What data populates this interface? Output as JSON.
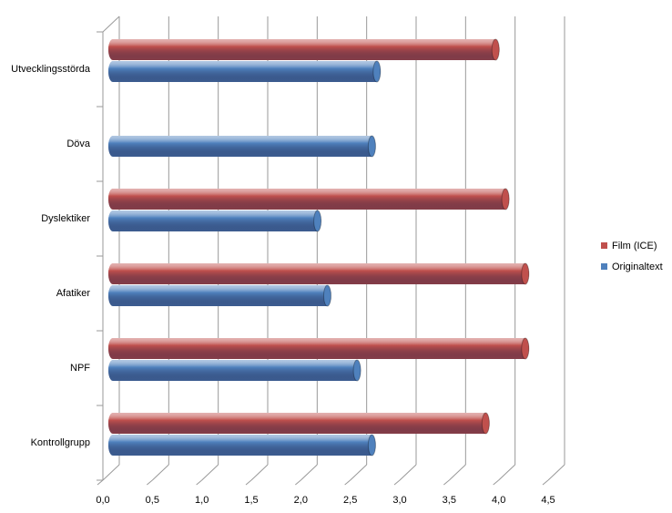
{
  "chart_data": {
    "type": "bar",
    "orientation": "horizontal",
    "categories": [
      "Utvecklingsstörda",
      "Döva",
      "Dyslektiker",
      "Afatiker",
      "NPF",
      "Kontrollgrupp"
    ],
    "series": [
      {
        "name": "Film (ICE)",
        "color": "#c0504d",
        "values": [
          3.95,
          null,
          4.05,
          4.25,
          4.25,
          3.85
        ]
      },
      {
        "name": "Originaltext",
        "color": "#4f81bd",
        "values": [
          2.75,
          2.7,
          2.15,
          2.25,
          2.55,
          2.7
        ]
      }
    ],
    "xlim": [
      0,
      4.5
    ],
    "xticks": [
      {
        "value": 0,
        "label": "0,0"
      },
      {
        "value": 0.5,
        "label": "0,5"
      },
      {
        "value": 1,
        "label": "1,0"
      },
      {
        "value": 1.5,
        "label": "1,5"
      },
      {
        "value": 2,
        "label": "2,0"
      },
      {
        "value": 2.5,
        "label": "2,5"
      },
      {
        "value": 3,
        "label": "3,0"
      },
      {
        "value": 3.5,
        "label": "3,5"
      },
      {
        "value": 4,
        "label": "4,0"
      },
      {
        "value": 4.5,
        "label": "4,5"
      }
    ],
    "grid": true,
    "legend": "right"
  }
}
